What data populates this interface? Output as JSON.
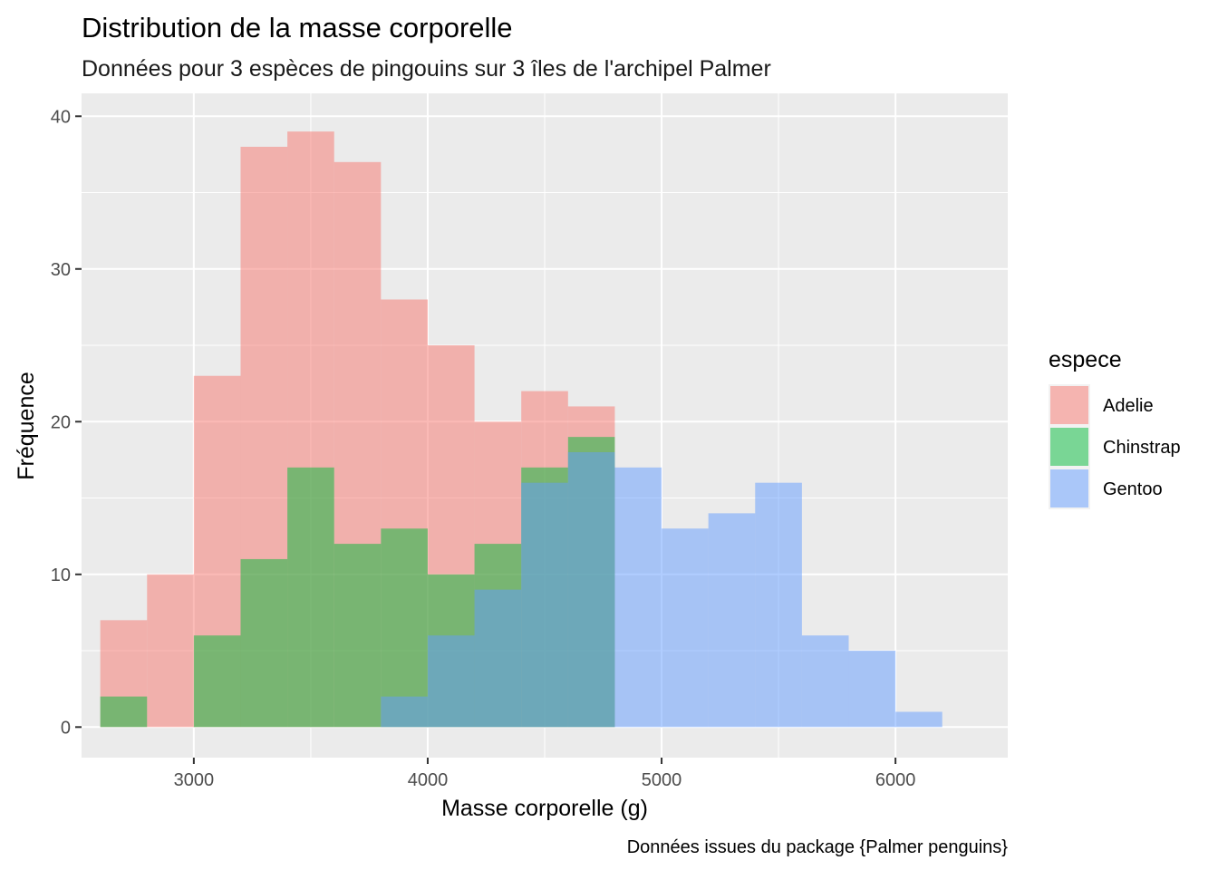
{
  "chart_data": {
    "type": "histogram",
    "title": "Distribution de la masse corporelle",
    "subtitle": "Données pour 3 espèces de pingouins sur 3 îles de l'archipel Palmer",
    "xlabel": "Masse corporelle (g)",
    "ylabel": "Fréquence",
    "caption": "Données issues du package {Palmer penguins}",
    "xlim": [
      2520,
      6480
    ],
    "ylim": [
      -2,
      41.5
    ],
    "x_ticks": [
      3000,
      4000,
      5000,
      6000
    ],
    "y_ticks": [
      0,
      10,
      20,
      30,
      40
    ],
    "grid": true,
    "position": "identity",
    "bin_width": 200,
    "legend": {
      "title": "espece",
      "position": "right"
    },
    "series": [
      {
        "name": "Adelie",
        "color": "#F8766D",
        "bins": [
          [
            2700,
            7
          ],
          [
            2900,
            10
          ],
          [
            3100,
            23
          ],
          [
            3300,
            38
          ],
          [
            3500,
            39
          ],
          [
            3700,
            37
          ],
          [
            3900,
            28
          ],
          [
            4100,
            25
          ],
          [
            4300,
            20
          ],
          [
            4500,
            22
          ],
          [
            4700,
            21
          ]
        ]
      },
      {
        "name": "Chinstrap",
        "color": "#00BA38",
        "bins": [
          [
            2700,
            2
          ],
          [
            2900,
            0
          ],
          [
            3100,
            6
          ],
          [
            3300,
            11
          ],
          [
            3500,
            17
          ],
          [
            3700,
            12
          ],
          [
            3900,
            13
          ],
          [
            4100,
            10
          ],
          [
            4300,
            12
          ],
          [
            4500,
            17
          ],
          [
            4700,
            19
          ]
        ]
      },
      {
        "name": "Gentoo",
        "color": "#619CFF",
        "bins": [
          [
            3900,
            2
          ],
          [
            4100,
            6
          ],
          [
            4300,
            9
          ],
          [
            4500,
            16
          ],
          [
            4700,
            18
          ],
          [
            4900,
            17
          ],
          [
            5100,
            13
          ],
          [
            5300,
            14
          ],
          [
            5500,
            16
          ],
          [
            5700,
            6
          ],
          [
            5900,
            5
          ],
          [
            6100,
            1
          ]
        ]
      }
    ]
  }
}
